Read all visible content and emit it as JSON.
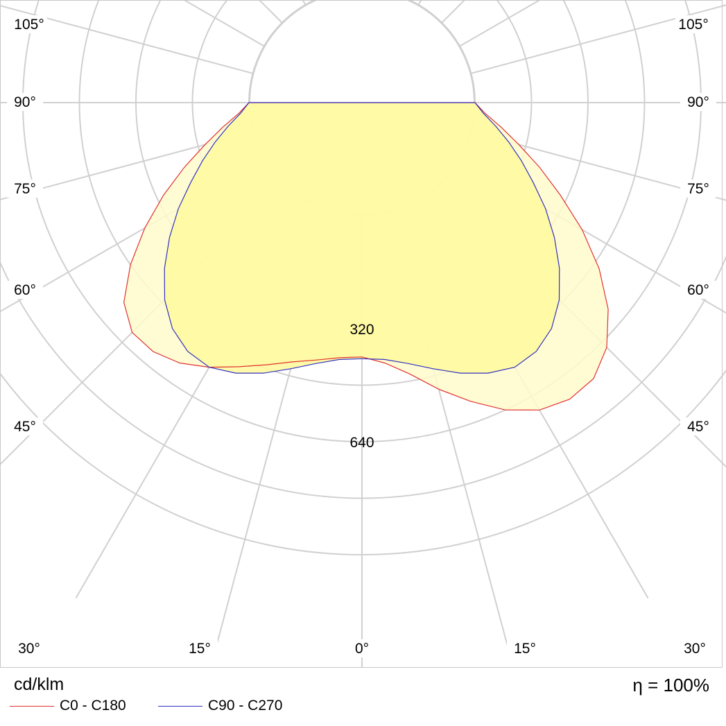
{
  "chart_data": {
    "type": "polar",
    "title": "",
    "unit": "cd/klm",
    "efficiency": "η = 100%",
    "radial_ticks": [
      {
        "value": 320,
        "label": "320"
      },
      {
        "value": 640,
        "label": "640"
      }
    ],
    "radial_max": 880,
    "angle_labels": [
      "0°",
      "15°",
      "30°",
      "45°",
      "60°",
      "75°",
      "90°",
      "105°"
    ],
    "series": [
      {
        "name": "C0 - C180",
        "color": "#e03030",
        "angles": [
          0,
          5,
          10,
          15,
          20,
          25,
          30,
          35,
          40,
          45,
          50,
          55,
          60,
          65,
          70,
          75,
          80,
          85,
          90
        ],
        "left": [
          400,
          405,
          420,
          440,
          470,
          505,
          545,
          580,
          600,
          600,
          560,
          480,
          390,
          300,
          215,
          140,
          80,
          30,
          0
        ],
        "right": [
          400,
          420,
          460,
          520,
          580,
          640,
          685,
          705,
          700,
          660,
          590,
          500,
          400,
          300,
          215,
          140,
          80,
          30,
          0
        ]
      },
      {
        "name": "C90 - C270",
        "color": "#3030c0",
        "angles": [
          0,
          5,
          10,
          15,
          20,
          25,
          30,
          35,
          40,
          45,
          50,
          55,
          60,
          65,
          70,
          75,
          80,
          85,
          90
        ],
        "values": [
          405,
          410,
          430,
          460,
          495,
          525,
          545,
          540,
          515,
          470,
          410,
          345,
          280,
          215,
          160,
          110,
          65,
          25,
          0
        ]
      }
    ]
  }
}
